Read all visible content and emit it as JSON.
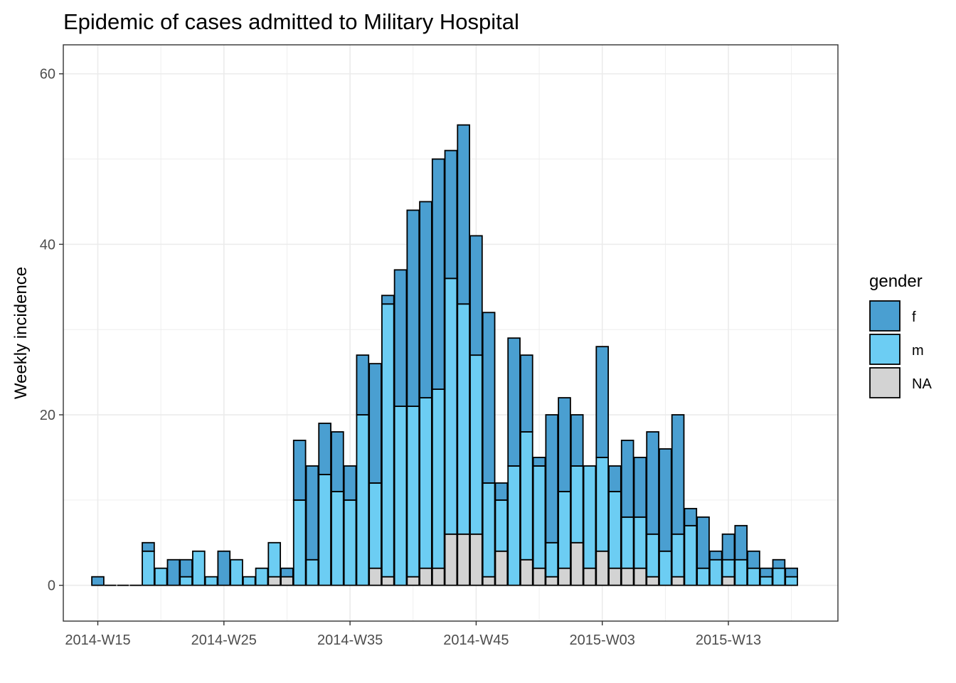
{
  "chart_data": {
    "type": "bar",
    "stacked": true,
    "title": "Epidemic of cases admitted to Military Hospital",
    "xlabel": "",
    "ylabel": "Weekly incidence",
    "ylim": [
      -4.2,
      63.4
    ],
    "y_ticks": [
      0,
      20,
      40,
      60
    ],
    "x_tick_labels": [
      "2014-W15",
      "2014-W25",
      "2014-W35",
      "2014-W45",
      "2015-W03",
      "2015-W13"
    ],
    "x_tick_positions": [
      0,
      10,
      20,
      30,
      40,
      50
    ],
    "grid": true,
    "legend": {
      "title": "gender",
      "position": "right",
      "entries": [
        "f",
        "m",
        "NA"
      ]
    },
    "colors": {
      "f": "#4a9fd1",
      "m": "#6ccdf3",
      "NA": "#d3d3d3",
      "outline": "#000000",
      "grid": "#ebebeb",
      "panel_border": "#333333"
    },
    "categories": [
      "2014-W15",
      "2014-W16",
      "2014-W17",
      "2014-W18",
      "2014-W19",
      "2014-W20",
      "2014-W21",
      "2014-W22",
      "2014-W23",
      "2014-W24",
      "2014-W25",
      "2014-W26",
      "2014-W27",
      "2014-W28",
      "2014-W29",
      "2014-W30",
      "2014-W31",
      "2014-W32",
      "2014-W33",
      "2014-W34",
      "2014-W35",
      "2014-W36",
      "2014-W37",
      "2014-W38",
      "2014-W39",
      "2014-W40",
      "2014-W41",
      "2014-W42",
      "2014-W43",
      "2014-W44",
      "2014-W45",
      "2014-W46",
      "2014-W47",
      "2014-W48",
      "2014-W49",
      "2014-W50",
      "2014-W51",
      "2014-W52",
      "2015-W01",
      "2015-W02",
      "2015-W03",
      "2015-W04",
      "2015-W05",
      "2015-W06",
      "2015-W07",
      "2015-W08",
      "2015-W09",
      "2015-W10",
      "2015-W11",
      "2015-W12",
      "2015-W13",
      "2015-W14",
      "2015-W15",
      "2015-W16",
      "2015-W17",
      "2015-W18"
    ],
    "series": [
      {
        "name": "NA",
        "values": [
          0,
          0,
          0,
          0,
          0,
          0,
          0,
          0,
          0,
          0,
          0,
          0,
          0,
          0,
          1,
          1,
          0,
          0,
          0,
          0,
          0,
          0,
          2,
          1,
          0,
          1,
          2,
          2,
          6,
          6,
          6,
          1,
          4,
          0,
          3,
          2,
          1,
          2,
          5,
          2,
          4,
          2,
          2,
          2,
          1,
          0,
          1,
          0,
          0,
          0,
          1,
          0,
          0,
          0,
          0,
          0
        ]
      },
      {
        "name": "m",
        "values": [
          0,
          0,
          0,
          0,
          4,
          2,
          0,
          1,
          4,
          1,
          0,
          3,
          1,
          2,
          4,
          0,
          10,
          3,
          13,
          11,
          10,
          20,
          10,
          32,
          21,
          20,
          20,
          21,
          30,
          27,
          21,
          11,
          6,
          14,
          15,
          12,
          4,
          9,
          9,
          12,
          11,
          9,
          6,
          6,
          5,
          4,
          5,
          7,
          2,
          3,
          2,
          3,
          2,
          1,
          2,
          1
        ]
      },
      {
        "name": "f",
        "values": [
          1,
          0,
          0,
          0,
          1,
          0,
          3,
          2,
          0,
          0,
          4,
          0,
          0,
          0,
          0,
          1,
          7,
          11,
          6,
          7,
          4,
          7,
          14,
          1,
          16,
          23,
          23,
          27,
          15,
          21,
          14,
          20,
          2,
          15,
          9,
          1,
          15,
          11,
          6,
          0,
          13,
          3,
          9,
          7,
          12,
          12,
          14,
          2,
          6,
          1,
          3,
          4,
          2,
          1,
          1,
          1
        ]
      }
    ]
  }
}
